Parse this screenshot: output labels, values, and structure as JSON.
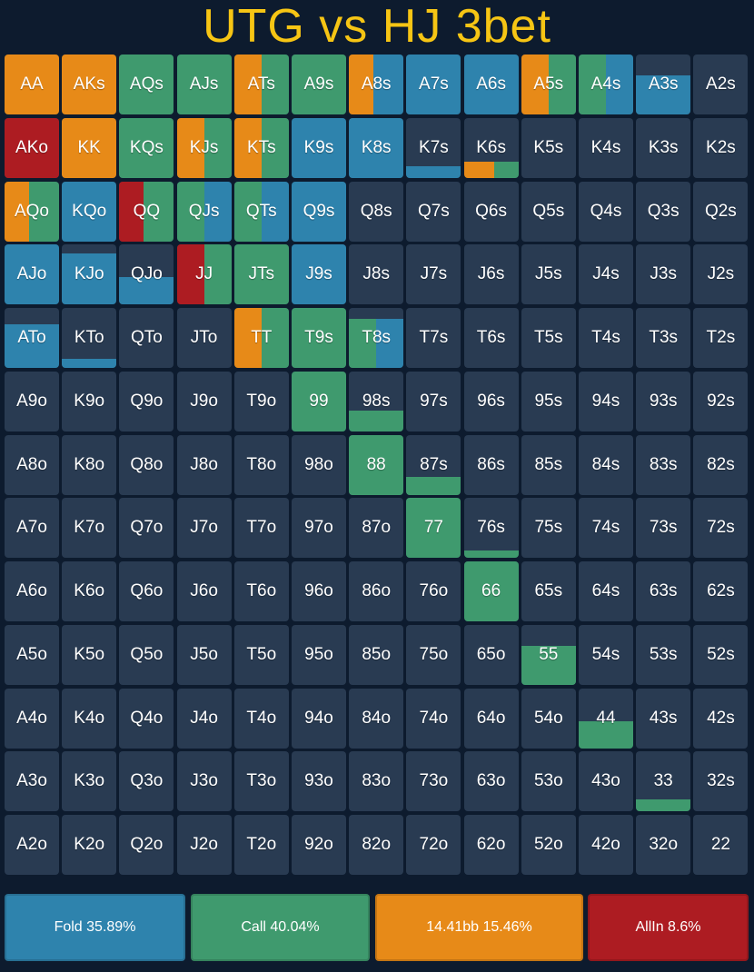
{
  "title": "UTG vs HJ 3bet",
  "colors": {
    "fold": "#2e83ad",
    "call": "#3f9a6e",
    "raise": "#e78a18",
    "allin": "#ad1c22",
    "empty": "#293b52",
    "title": "#f6c514",
    "background": "#0d1b2e"
  },
  "legend": [
    {
      "key": "fold",
      "label": "Fold 35.89%"
    },
    {
      "key": "call",
      "label": "Call 40.04%"
    },
    {
      "key": "raise",
      "label": "14.41bb 15.46%"
    },
    {
      "key": "allin",
      "label": "AllIn 8.6%"
    }
  ],
  "grid": [
    [
      "AA",
      "AKs",
      "AQs",
      "AJs",
      "ATs",
      "A9s",
      "A8s",
      "A7s",
      "A6s",
      "A5s",
      "A4s",
      "A3s",
      "A2s"
    ],
    [
      "AKo",
      "KK",
      "KQs",
      "KJs",
      "KTs",
      "K9s",
      "K8s",
      "K7s",
      "K6s",
      "K5s",
      "K4s",
      "K3s",
      "K2s"
    ],
    [
      "AQo",
      "KQo",
      "QQ",
      "QJs",
      "QTs",
      "Q9s",
      "Q8s",
      "Q7s",
      "Q6s",
      "Q5s",
      "Q4s",
      "Q3s",
      "Q2s"
    ],
    [
      "AJo",
      "KJo",
      "QJo",
      "JJ",
      "JTs",
      "J9s",
      "J8s",
      "J7s",
      "J6s",
      "J5s",
      "J4s",
      "J3s",
      "J2s"
    ],
    [
      "ATo",
      "KTo",
      "QTo",
      "JTo",
      "TT",
      "T9s",
      "T8s",
      "T7s",
      "T6s",
      "T5s",
      "T4s",
      "T3s",
      "T2s"
    ],
    [
      "A9o",
      "K9o",
      "Q9o",
      "J9o",
      "T9o",
      "99",
      "98s",
      "97s",
      "96s",
      "95s",
      "94s",
      "93s",
      "92s"
    ],
    [
      "A8o",
      "K8o",
      "Q8o",
      "J8o",
      "T8o",
      "98o",
      "88",
      "87s",
      "86s",
      "85s",
      "84s",
      "83s",
      "82s"
    ],
    [
      "A7o",
      "K7o",
      "Q7o",
      "J7o",
      "T7o",
      "97o",
      "87o",
      "77",
      "76s",
      "75s",
      "74s",
      "73s",
      "72s"
    ],
    [
      "A6o",
      "K6o",
      "Q6o",
      "J6o",
      "T6o",
      "96o",
      "86o",
      "76o",
      "66",
      "65s",
      "64s",
      "63s",
      "62s"
    ],
    [
      "A5o",
      "K5o",
      "Q5o",
      "J5o",
      "T5o",
      "95o",
      "85o",
      "75o",
      "65o",
      "55",
      "54s",
      "53s",
      "52s"
    ],
    [
      "A4o",
      "K4o",
      "Q4o",
      "J4o",
      "T4o",
      "94o",
      "84o",
      "74o",
      "64o",
      "54o",
      "44",
      "43s",
      "42s"
    ],
    [
      "A3o",
      "K3o",
      "Q3o",
      "J3o",
      "T3o",
      "93o",
      "83o",
      "73o",
      "63o",
      "53o",
      "43o",
      "33",
      "32s"
    ],
    [
      "A2o",
      "K2o",
      "Q2o",
      "J2o",
      "T2o",
      "92o",
      "82o",
      "72o",
      "62o",
      "52o",
      "42o",
      "32o",
      "22"
    ]
  ],
  "strategy": {
    "AA": {
      "freq": 1.0,
      "mix": [
        [
          "raise",
          1.0
        ]
      ]
    },
    "AKs": {
      "freq": 1.0,
      "mix": [
        [
          "raise",
          1.0
        ]
      ]
    },
    "AQs": {
      "freq": 1.0,
      "mix": [
        [
          "call",
          1.0
        ]
      ]
    },
    "AJs": {
      "freq": 1.0,
      "mix": [
        [
          "call",
          1.0
        ]
      ]
    },
    "ATs": {
      "freq": 1.0,
      "mix": [
        [
          "raise",
          0.5
        ],
        [
          "call",
          0.5
        ]
      ]
    },
    "A9s": {
      "freq": 1.0,
      "mix": [
        [
          "call",
          1.0
        ]
      ]
    },
    "A8s": {
      "freq": 1.0,
      "mix": [
        [
          "raise",
          0.45
        ],
        [
          "fold",
          0.55
        ]
      ]
    },
    "A7s": {
      "freq": 1.0,
      "mix": [
        [
          "fold",
          1.0
        ]
      ]
    },
    "A6s": {
      "freq": 1.0,
      "mix": [
        [
          "fold",
          1.0
        ]
      ]
    },
    "A5s": {
      "freq": 1.0,
      "mix": [
        [
          "raise",
          0.5
        ],
        [
          "call",
          0.5
        ]
      ]
    },
    "A4s": {
      "freq": 1.0,
      "mix": [
        [
          "call",
          0.5
        ],
        [
          "fold",
          0.5
        ]
      ]
    },
    "A3s": {
      "freq": 0.65,
      "mix": [
        [
          "fold",
          1.0
        ]
      ]
    },
    "AKo": {
      "freq": 1.0,
      "mix": [
        [
          "allin",
          1.0
        ]
      ]
    },
    "KK": {
      "freq": 1.0,
      "mix": [
        [
          "raise",
          1.0
        ]
      ]
    },
    "KQs": {
      "freq": 1.0,
      "mix": [
        [
          "call",
          1.0
        ]
      ]
    },
    "KJs": {
      "freq": 1.0,
      "mix": [
        [
          "raise",
          0.5
        ],
        [
          "call",
          0.5
        ]
      ]
    },
    "KTs": {
      "freq": 1.0,
      "mix": [
        [
          "raise",
          0.5
        ],
        [
          "call",
          0.5
        ]
      ]
    },
    "K9s": {
      "freq": 1.0,
      "mix": [
        [
          "fold",
          1.0
        ]
      ]
    },
    "K8s": {
      "freq": 1.0,
      "mix": [
        [
          "fold",
          1.0
        ]
      ]
    },
    "K7s": {
      "freq": 0.2,
      "mix": [
        [
          "fold",
          1.0
        ]
      ]
    },
    "K6s": {
      "freq": 0.28,
      "mix": [
        [
          "raise",
          0.55
        ],
        [
          "call",
          0.45
        ]
      ]
    },
    "AQo": {
      "freq": 1.0,
      "mix": [
        [
          "raise",
          0.45
        ],
        [
          "call",
          0.55
        ]
      ]
    },
    "KQo": {
      "freq": 1.0,
      "mix": [
        [
          "fold",
          1.0
        ]
      ]
    },
    "QQ": {
      "freq": 1.0,
      "mix": [
        [
          "allin",
          0.45
        ],
        [
          "call",
          0.55
        ]
      ]
    },
    "QJs": {
      "freq": 1.0,
      "mix": [
        [
          "call",
          0.5
        ],
        [
          "fold",
          0.5
        ]
      ]
    },
    "QTs": {
      "freq": 1.0,
      "mix": [
        [
          "call",
          0.5
        ],
        [
          "fold",
          0.5
        ]
      ]
    },
    "Q9s": {
      "freq": 1.0,
      "mix": [
        [
          "fold",
          1.0
        ]
      ]
    },
    "AJo": {
      "freq": 1.0,
      "mix": [
        [
          "fold",
          1.0
        ]
      ]
    },
    "KJo": {
      "freq": 0.85,
      "mix": [
        [
          "fold",
          1.0
        ]
      ]
    },
    "QJo": {
      "freq": 0.45,
      "mix": [
        [
          "fold",
          1.0
        ]
      ]
    },
    "JJ": {
      "freq": 1.0,
      "mix": [
        [
          "allin",
          0.5
        ],
        [
          "call",
          0.5
        ]
      ]
    },
    "JTs": {
      "freq": 1.0,
      "mix": [
        [
          "call",
          1.0
        ]
      ]
    },
    "J9s": {
      "freq": 1.0,
      "mix": [
        [
          "fold",
          1.0
        ]
      ]
    },
    "ATo": {
      "freq": 0.72,
      "mix": [
        [
          "fold",
          1.0
        ]
      ]
    },
    "KTo": {
      "freq": 0.15,
      "mix": [
        [
          "fold",
          1.0
        ]
      ]
    },
    "TT": {
      "freq": 1.0,
      "mix": [
        [
          "raise",
          0.5
        ],
        [
          "call",
          0.5
        ]
      ]
    },
    "T9s": {
      "freq": 1.0,
      "mix": [
        [
          "call",
          1.0
        ]
      ]
    },
    "T8s": {
      "freq": 0.82,
      "mix": [
        [
          "call",
          0.5
        ],
        [
          "fold",
          0.5
        ]
      ]
    },
    "99": {
      "freq": 1.0,
      "mix": [
        [
          "call",
          1.0
        ]
      ]
    },
    "98s": {
      "freq": 0.35,
      "mix": [
        [
          "call",
          1.0
        ]
      ]
    },
    "88": {
      "freq": 1.0,
      "mix": [
        [
          "call",
          1.0
        ]
      ]
    },
    "87s": {
      "freq": 0.3,
      "mix": [
        [
          "call",
          1.0
        ]
      ]
    },
    "77": {
      "freq": 1.0,
      "mix": [
        [
          "call",
          1.0
        ]
      ]
    },
    "76s": {
      "freq": 0.12,
      "mix": [
        [
          "call",
          1.0
        ]
      ]
    },
    "66": {
      "freq": 1.0,
      "mix": [
        [
          "call",
          1.0
        ]
      ]
    },
    "55": {
      "freq": 0.65,
      "mix": [
        [
          "call",
          1.0
        ]
      ]
    },
    "44": {
      "freq": 0.45,
      "mix": [
        [
          "call",
          1.0
        ]
      ]
    },
    "33": {
      "freq": 0.2,
      "mix": [
        [
          "call",
          1.0
        ]
      ]
    }
  }
}
